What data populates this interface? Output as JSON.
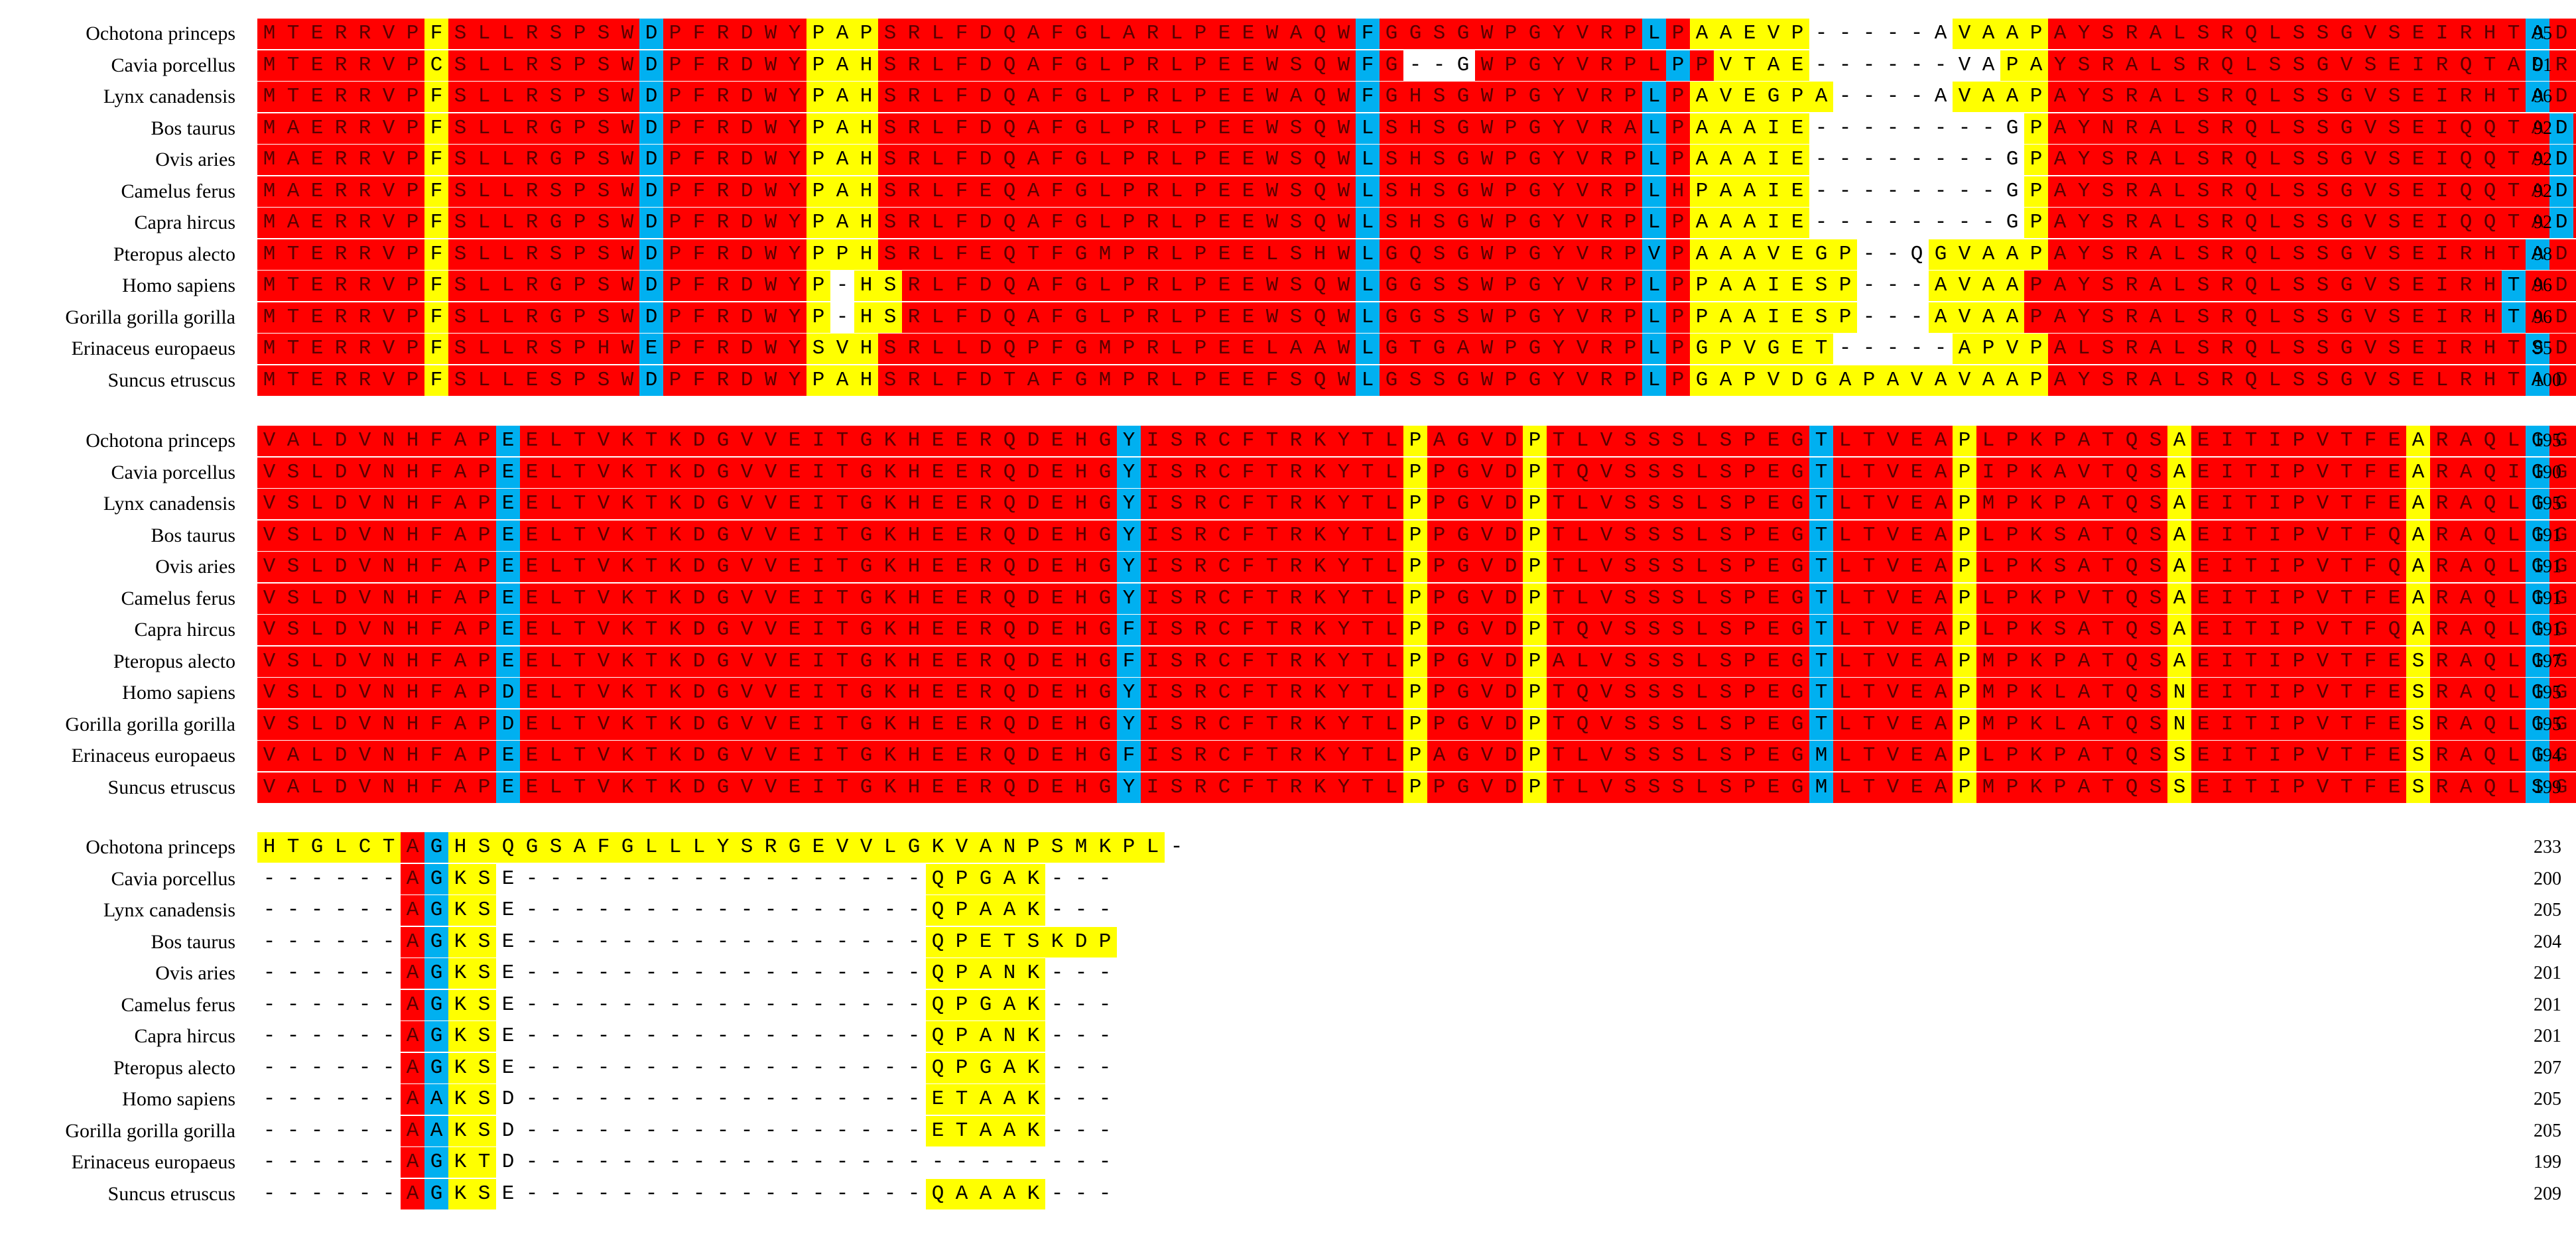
{
  "blocks": [
    {
      "rows": [
        {
          "species": "Ochotona princeps",
          "seq": "MTERRVPFSLLRSPSWDPFRDWYPAPSRLFDQAFGLARLPEEWAQWFGGSGWPGYVRPLPAAEVP-----AVAAPAYSRALSRQLSSGVSEIRHTADRWR",
          "colors": "RRRRRRRYRRRRRRRRBRRRRRRYYYRRRRRRRRRRRRRRRRRRRRBRRRRRRRRRRRBRYYYYYY-----YYYYRRRRRRRRRRRRRRRRRRRRBRRRR",
          "end": "95"
        },
        {
          "species": "Cavia porcellus",
          "seq": "MTERRVPCSLLRSPSWDPFRDWYPAHSRLFDQAFGLPRLPEEWSQWFG--GWPGYVRPLPPVTAE------VAPAYSRALSRQLSSGVSEIRQTADRWR",
          "colors": "RRRRRRRYRRRRRRRRBRRRRRRYYYRRRRRRRRRRRRRRRRRRRRBRR--RRRRRRRRBRYYYYYY------YYRRRRRRRRRRRRRRRRRRRRBRRRR",
          "end": "91"
        },
        {
          "species": "Lynx canadensis",
          "seq": "MTERRVPFSLLRSPSWDPFRDWYPAHSRLFDQAFGLPRLPEEWAQWFGHSGWPGYVRPLPAVEGPA----AVAAPAYSRALSRQLSSGVSEIRHTADRWR",
          "colors": "RRRRRRRYRRRRRRRRBRRRRRRYYYRRRRRRRRRRRRRRRRRRRRBRRRRRRRRRRRBRYYYYYYY----YYYYRRRRRRRRRRRRRRRRRRRRBRRRR",
          "end": "96"
        },
        {
          "species": "Bos taurus",
          "seq": "MAERRVPFSLLRGPSWDPFRDWYPAHSRLFDQAFGLPRLPEEWSQWLSHSGWPGYVRALPAAAIE--------GPAYNRALSRQLSSGVSEIQQTADRWR",
          "colors": "RRRRRRRYRRRRRRRRBRRRRRRYYYRRRRRRRRRRRRRRRRRRRRBRRRRRRRRRRRBRYYYYYY--------YRRRRRRRRRRRRRRRRRRRRRBRRRR",
          "end": "92"
        },
        {
          "species": "Ovis aries",
          "seq": "MAERRVPFSLLRGPSWDPFRDWYPAHSRLFDQAFGLPRLPEEWSQWLSHSGWPGYVRPLPAAAIE--------GPAYSRALSRQLSSGVSEIQQTADRWR",
          "colors": "RRRRRRRYRRRRRRRRBRRRRRRYYYRRRRRRRRRRRRRRRRRRRRBRRRRRRRRRRRBRYYYYYY--------YRRRRRRRRRRRRRRRRRRRRRBRRRR",
          "end": "92"
        },
        {
          "species": "Camelus ferus",
          "seq": "MAERRVPFSLLRSPSWDPFRDWYPAHSRLFEQAFGLPRLPEEWSQWLSHSGWPGYVRPLHPAAIE--------GPAYSRALSRQLSSGVSEIQQTADRWR",
          "colors": "RRRRRRRYRRRRRRRRBRRRRRRYYYRRRRRRRRRRRRRRRRRRRRBRRRRRRRRRRRBRYYYYYY--------YRRRRRRRRRRRRRRRRRRRRRBRRRR",
          "end": "92"
        },
        {
          "species": "Capra hircus",
          "seq": "MAERRVPFSLLRGPSWDPFRDWYPAHSRLFDQAFGLPRLPEEWSQWLSHSGWPGYVRPLPAAAIE--------GPAYSRALSRQLSSGVSEIQQTADRWR",
          "colors": "RRRRRRRYRRRRRRRRBRRRRRRYYYRRRRRRRRRRRRRRRRRRRRBRRRRRRRRRRRBRYYYYYY--------YRRRRRRRRRRRRRRRRRRRRRBRRRR",
          "end": "92"
        },
        {
          "species": "Pteropus alecto",
          "seq": "MTERRVPFSLLRSPSWDPFRDWYPPHSRLFEQTFGMPRLPEELSHWLGQSGWPGYVRPVPAAAVEGP--QGVAAPAYSRALSRQLSSGVSEIRHTADRWR",
          "colors": "RRRRRRRYRRRRRRRRBRRRRRRYYYRRRRRRRRRRRRRRRRRRRRBRRRRRRRRRRRBRYYYYYYYY--YYYYYRRRRRRRRRRRRRRRRRRRRBRRRR",
          "end": "98"
        },
        {
          "species": "Homo sapiens",
          "seq": "MTERRVPFSLLRGPSWDPFRDWYP-HSRLFDQAFGLPRLPEEWSQWLGGSSWPGYVRPLPPAAIESP---AVAAPAYSRALSRQLSSGVSEIRHTADRWR",
          "colors": "RRRRRRRYRRRRRRRRBRRRRRRY-YYRRRRRRRRRRRRRRRRRRRBRRRRRRRRRRRBRYYYYYYY---YYYYRRRRRRRRRRRRRRRRRRRRBRRRR",
          "end": "96"
        },
        {
          "species": "Gorilla gorilla gorilla",
          "seq": "MTERRVPFSLLRGPSWDPFRDWYP-HSRLFDQAFGLPRLPEEWSQWLGGSSWPGYVRPLPPAAIESP---AVAAPAYSRALSRQLSSGVSEIRHTADRWR",
          "colors": "RRRRRRRYRRRRRRRRBRRRRRRY-YYRRRRRRRRRRRRRRRRRRRBRRRRRRRRRRRBRYYYYYYY---YYYYRRRRRRRRRRRRRRRRRRRRBRRRR",
          "end": "96"
        },
        {
          "species": "Erinaceus europaeus",
          "seq": "MTERRVPFSLLRSPHWEPFRDWYSVHSRLLDQPFGMPRLPEELAAWLGTGAWPGYVRPLPGPVGET-----APVPALSRALSRQLSSGVSEIRHTSDRWR",
          "colors": "RRRRRRRYRRRRRRRRBRRRRRRYYYRRRRRRRRRRRRRRRRRRRRBRRRRRRRRRRRBRYYYYYY-----YYYYRRRRRRRRRRRRRRRRRRRRBRRRR",
          "end": "95"
        },
        {
          "species": "Suncus etruscus",
          "seq": "MTERRVPFSLLESPSWDPFRDWYPAHSRLFDTAFGMPRLPEEFSQWLGSSGWPGYVRPLPGAPVDGAPAVAVAAPAYSRALSRQLSSGVSELRHTADRWR",
          "colors": "RRRRRRRYRRRRRRRRBRRRRRRYYYRRRRRRRRRRRRRRRRRRRRBRRRRRRRRRRRBRYYYYYYYYYYYYYYYRRRRRRRRRRRRRRRRRRRRBRRRR",
          "end": "100"
        }
      ]
    },
    {
      "rows": [
        {
          "species": "Ochotona princeps",
          "seq": "VALDVNHFAPEELTVKTKDGVVEITGKHEERQDEHGYISRCFTRKYTLPAGVDPTLVSSSLSPEGTLTVEAPLPKPATQSAEITIPVTFEARAQLGGPEV",
          "colors": "RRRRRRRRRRBRRRRRRRRRRRRRRRRRRRRRRRRRBRRRRRRRRRRRYRRRRYRRRRRRRRRRRBRRRRRYRRRRRRRRYRRRRRRRRRYRRRRBRRRRY",
          "end": "195"
        },
        {
          "species": "Cavia porcellus",
          "seq": "VSLDVNHFAPEELTVKTKDGVVEITGKHEERQDEHGYISRCFTRKYTLPPGVDPTQVSSSLSPEGTLTVEAPIPKAVTQSAEITIPVTFEARAQIGGPE-",
          "colors": "RRRRRRRRRRBRRRRRRRRRRRRRRRRRRRRRRRRRBRRRRRRRRRRRYRRRRYRRRRRRRRRRRBRRRRRYRRRRRRRRYRRRRRRRRRYRRRRBRRRR-",
          "end": "190"
        },
        {
          "species": "Lynx canadensis",
          "seq": "VSLDVNHFAPEELTVKTKDGVVEITGKHEERQDEHGYISRCFTRKYTLPPGVDPTLVSSSLSPEGTLTVEAPMPKPATQSAEITIPVTFEARAQLGGPE-",
          "colors": "RRRRRRRRRRBRRRRRRRRRRRRRRRRRRRRRRRRRBRRRRRRRRRRRYRRRRYRRRRRRRRRRRBRRRRRYRRRRRRRRYRRRRRRRRRYRRRRBRRRR-",
          "end": "195"
        },
        {
          "species": "Bos taurus",
          "seq": "VSLDVNHFAPEELTVKTKDGVVEITGKHEERQDEHGYISRCFTRKYTLPPGVDPTLVSSSLSPEGTLTVEAPLPKSATQSAEITIPVTFQARAQLGGPE-",
          "colors": "RRRRRRRRRRBRRRRRRRRRRRRRRRRRRRRRRRRRBRRRRRRRRRRRYRRRRYRRRRRRRRRRRBRRRRRYRRRRRRRRYRRRRRRRRRYRRRRBRRRR-",
          "end": "191"
        },
        {
          "species": "Ovis aries",
          "seq": "VSLDVNHFAPEELTVKTKDGVVEITGKHEERQDEHGYISRCFTRKYTLPPGVDPTLVSSSLSPEGTLTVEAPLPKSATQSAEITIPVTFQARAQLGGPE-",
          "colors": "RRRRRRRRRRBRRRRRRRRRRRRRRRRRRRRRRRRRBRRRRRRRRRRRYRRRRYRRRRRRRRRRRBRRRRRYRRRRRRRRYRRRRRRRRRYRRRRBRRRR-",
          "end": "191"
        },
        {
          "species": "Camelus ferus",
          "seq": "VSLDVNHFAPEELTVKTKDGVVEITGKHEERQDEHGYISRCFTRKYTLPPGVDPTLVSSSLSPEGTLTVEAPLPKPVTQSAEITIPVTFEARAQLGGPE-",
          "colors": "RRRRRRRRRRBRRRRRRRRRRRRRRRRRRRRRRRRRBRRRRRRRRRRRYRRRRYRRRRRRRRRRRBRRRRRYRRRRRRRRYRRRRRRRRRYRRRRBRRRR-",
          "end": "191"
        },
        {
          "species": "Capra hircus",
          "seq": "VSLDVNHFAPEELTVKTKDGVVEITGKHEERQDEHGFISRCFTRKYTLPPGVDPTQVSSSLSPEGTLTVEAPLPKSATQSAEITIPVTFQARAQLGGPE-",
          "colors": "RRRRRRRRRRBRRRRRRRRRRRRRRRRRRRRRRRRRBRRRRRRRRRRRYRRRRYRRRRRRRRRRRBRRRRRYRRRRRRRRYRRRRRRRRRYRRRRBRRRR-",
          "end": "191"
        },
        {
          "species": "Pteropus alecto",
          "seq": "VSLDVNHFAPEELTVKTKDGVVEITGKHEERQDEHGFISRCFTRKYTLPPGVDPALVSSSLSPEGTLTVEAPMPKPATQSAEITIPVTFESRAQLGGPE-",
          "colors": "RRRRRRRRRRBRRRRRRRRRRRRRRRRRRRRRRRRRBRRRRRRRRRRRYRRRRYRRRRRRRRRRRBRRRRRYRRRRRRRRYRRRRRRRRRYRRRRBRRRR-",
          "end": "197"
        },
        {
          "species": "Homo sapiens",
          "seq": "VSLDVNHFAPDELTVKTKDGVVEITGKHEERQDEHGYISRCFTRKYTLPPGVDPTQVSSSLSPEGTLTVEAPMPKLATQSNEITIPVTFESRAQLGGPE-",
          "colors": "RRRRRRRRRRBRRRRRRRRRRRRRRRRRRRRRRRRRBRRRRRRRRRRRYRRRRYRRRRRRRRRRRBRRRRRYRRRRRRRRYRRRRRRRRRYRRRRBRRRR-",
          "end": "195"
        },
        {
          "species": "Gorilla gorilla gorilla",
          "seq": "VSLDVNHFAPDELTVKTKDGVVEITGKHEERQDEHGYISRCFTRKYTLPPGVDPTQVSSSLSPEGTLTVEAPMPKLATQSNEITIPVTFESRAQLGGPE-",
          "colors": "RRRRRRRRRRBRRRRRRRRRRRRRRRRRRRRRRRRRBRRRRRRRRRRRYRRRRYRRRRRRRRRRRBRRRRRYRRRRRRRRYRRRRRRRRRYRRRRBRRRR-",
          "end": "195"
        },
        {
          "species": "Erinaceus europaeus",
          "seq": "VALDVNHFAPEELTVKTKDGVVEITGKHEERQDEHGFISRCFTRKYTLPAGVDPTLVSSSLSPEGMLTVEAPLPKPATQSSEITIPVTFESRAQLGGPE-",
          "colors": "RRRRRRRRRRBRRRRRRRRRRRRRRRRRRRRRRRRRBRRRRRRRRRRRYRRRRYRRRRRRRRRRRBRRRRRYRRRRRRRRYRRRRRRRRRYRRRRBRRRR-",
          "end": "194"
        },
        {
          "species": "Suncus etruscus",
          "seq": "VALDVNHFAPEELTVKTKDGVVEITGKHEERQDEHGYISRCFTRKYTLPPGVDPTLVSSSLSPEGMLTVEAPMPKPATQSSEITIPVTFESRAQLSGPE-",
          "colors": "RRRRRRRRRRBRRRRRRRRRRRRRRRRRRRRRRRRRBRRRRRRRRRRRYRRRRYRRRRRRRRRRRBRRRRRYRRRRRRRRYRRRRRRRRRYRRRRBRRRR-",
          "end": "199"
        }
      ]
    },
    {
      "rows": [
        {
          "species": "Ochotona princeps",
          "seq": "HTGLCTAGHSQGSAFGLLLYSRGEVVLGKVANPSMKPL-",
          "colors": "YYYYYYRBYYYYYYYYYYYYYYYYYYYYYYYYYYYYYY-",
          "end": "233"
        },
        {
          "species": "Cavia porcellus",
          "seq": "------AGKSE-----------------QPGAK---",
          "colors": "------RBYY------------------YYYYY---",
          "end": "200"
        },
        {
          "species": "Lynx canadensis",
          "seq": "------AGKSE-----------------QPAAK---",
          "colors": "------RBYY------------------YYYYY---",
          "end": "205"
        },
        {
          "species": "Bos taurus",
          "seq": "------AGKSE-----------------QPETSKDP",
          "colors": "------RBYY------------------YYYYYYYY",
          "end": "204"
        },
        {
          "species": "Ovis aries",
          "seq": "------AGKSE-----------------QPANK---",
          "colors": "------RBYY------------------YYYYY---",
          "end": "201"
        },
        {
          "species": "Camelus ferus",
          "seq": "------AGKSE-----------------QPGAK---",
          "colors": "------RBYY------------------YYYYY---",
          "end": "201"
        },
        {
          "species": "Capra hircus",
          "seq": "------AGKSE-----------------QPANK---",
          "colors": "------RBYY------------------YYYYY---",
          "end": "201"
        },
        {
          "species": "Pteropus alecto",
          "seq": "------AGKSE-----------------QPGAK---",
          "colors": "------RBYY------------------YYYYY---",
          "end": "207"
        },
        {
          "species": "Homo sapiens",
          "seq": "------AAKSD-----------------ETAAK---",
          "colors": "------RBYY------------------YYYYY---",
          "end": "205"
        },
        {
          "species": "Gorilla gorilla gorilla",
          "seq": "------AAKSD-----------------ETAAK---",
          "colors": "------RBYY------------------YYYYY---",
          "end": "205"
        },
        {
          "species": "Erinaceus europaeus",
          "seq": "------AGKTD-------------------------",
          "colors": "------RBYY--------------------------",
          "end": "199"
        },
        {
          "species": "Suncus etruscus",
          "seq": "------AGKSE-----------------QAAAK---",
          "colors": "------RBYY------------------YYYYY---",
          "end": "209"
        }
      ]
    }
  ],
  "palette": {
    "identical": "#ff0000",
    "similar": "#ffff00",
    "conserved": "#00b0f0",
    "background": "#ffffff"
  }
}
